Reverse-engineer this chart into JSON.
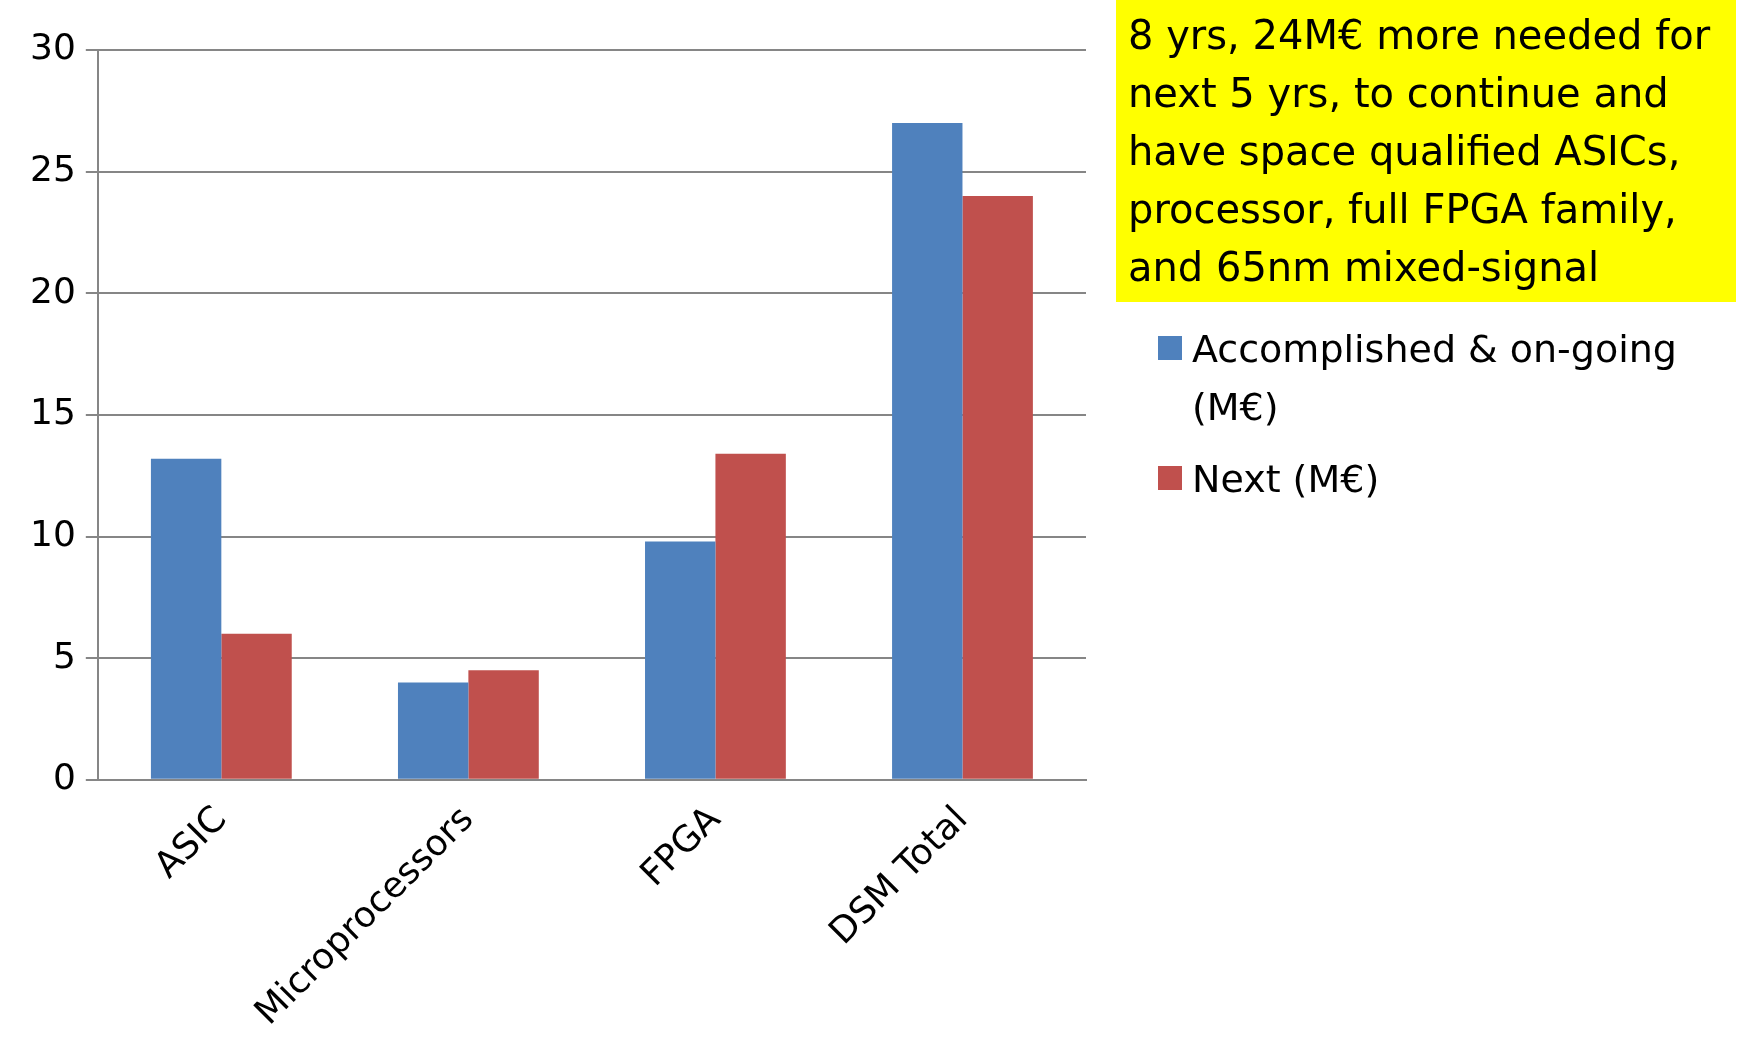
{
  "chart_data": {
    "type": "bar",
    "categories": [
      "ASIC",
      "Microprocessors",
      "FPGA",
      "DSM Total"
    ],
    "series": [
      {
        "name": "Accomplished & on-going (M€)",
        "color": "#4f81bd",
        "values": [
          13.2,
          4,
          9.8,
          27
        ]
      },
      {
        "name": "Next (M€)",
        "color": "#c0504d",
        "values": [
          6,
          4.5,
          13.4,
          24
        ]
      }
    ],
    "ylim": [
      0,
      30
    ],
    "yticks": [
      0,
      5,
      10,
      15,
      20,
      25,
      30
    ],
    "grid": "y",
    "legend": "right",
    "annotations": [
      "8 yrs, 24M€ more needed for next 5 yrs, to continue and have space qualified ASICs, processor, full FPGA family, and 65nm mixed-signal"
    ]
  }
}
